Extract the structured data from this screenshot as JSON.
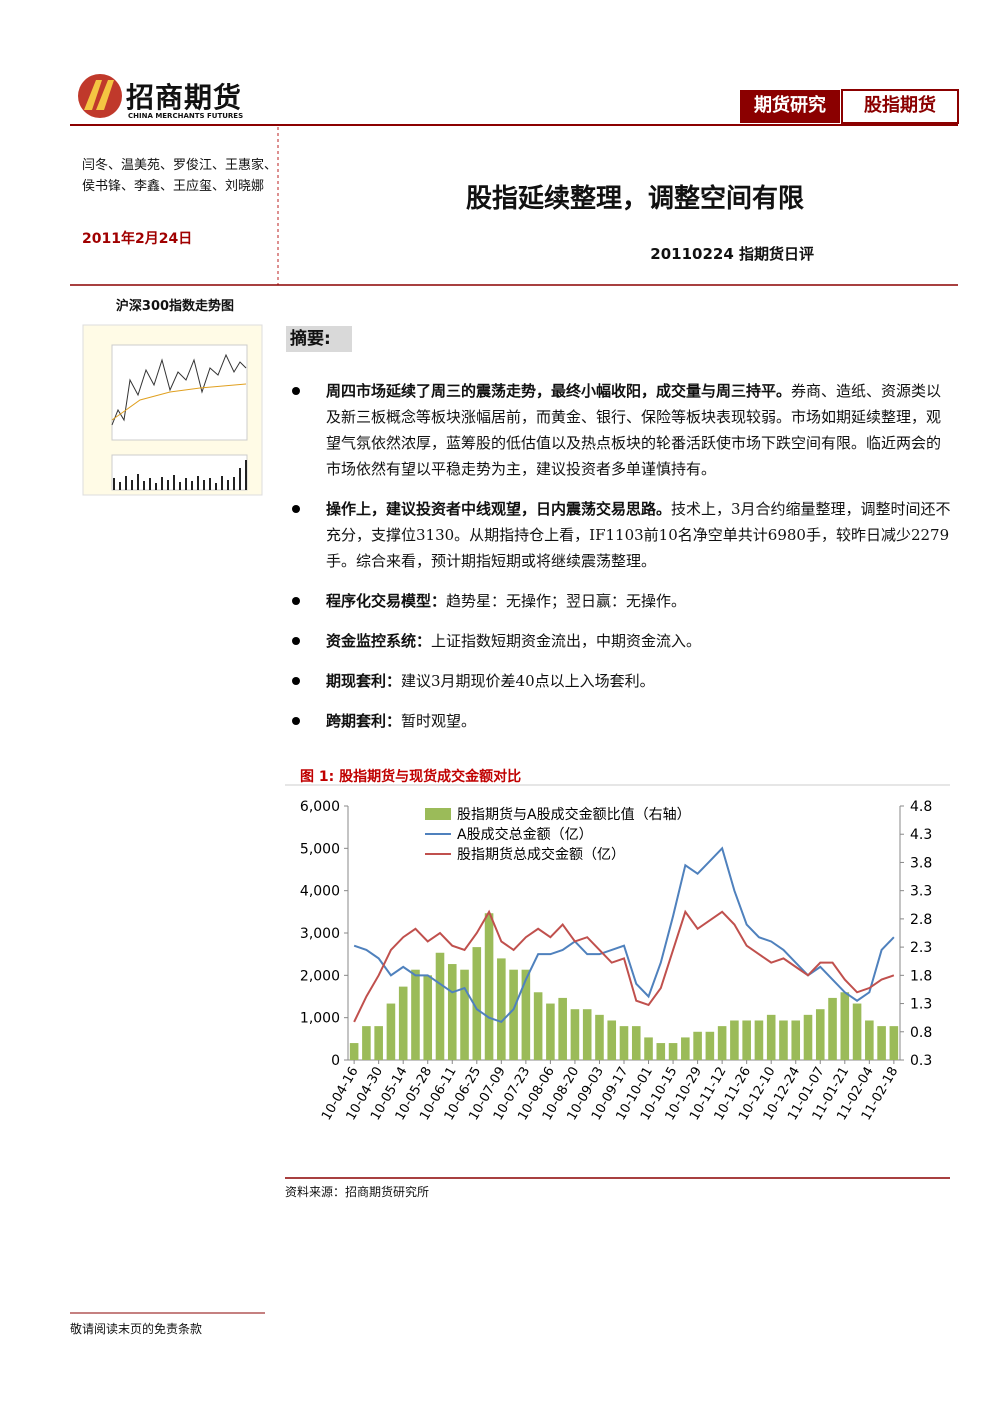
{
  "header": {
    "logo": "招商期货",
    "logo_en": "CHINA MERCHANTS FUTURES",
    "tags": [
      "期货研究",
      "股指期货"
    ]
  },
  "sidebar": {
    "authors": "闫冬、温美苑、罗俊江、王惠家、侯书锋、李鑫、王应玺、刘晓娜",
    "date": "2011年2月24日",
    "thumb_caption": "沪深300指数走势图"
  },
  "title": "股指延续整理，调整空间有限",
  "subtitle": "20110224 指期货日评",
  "summary_heading": "摘要:",
  "bullets": [
    {
      "bold": "周四市场延续了周三的震荡走势，最终小幅收阳，成交量与周三持平。",
      "text": "券商、造纸、资源类以及新三板概念等板块涨幅居前，而黄金、银行、保险等板块表现较弱。市场如期延续整理，观望气氛依然浓厚，蓝筹股的低估值以及热点板块的轮番活跃使市场下跌空间有限。临近两会的市场依然有望以平稳走势为主，建议投资者多单谨慎持有。"
    },
    {
      "bold": "操作上，建议投资者中线观望，日内震荡交易思路。",
      "text": "技术上，3月合约缩量整理，调整时间还不充分，支撑位3130。从期指持仓上看，IF1103前10名净空单共计6980手，较昨日减少2279手。综合来看，预计期指短期或将继续震荡整理。"
    },
    {
      "bold": "程序化交易模型：",
      "text": "趋势星：无操作；翌日赢：无操作。"
    },
    {
      "bold": "资金监控系统：",
      "text": "上证指数短期资金流出，中期资金流入。"
    },
    {
      "bold": "期现套利：",
      "text": "建议3月期现价差40点以上入场套利。"
    },
    {
      "bold": "跨期套利：",
      "text": "暂时观望。"
    }
  ],
  "figure_caption": "图 1: 股指期货与现货成交金额对比",
  "source": "资料来源：招商期货研究所",
  "footer": "敬请阅读末页的免责条款",
  "chart_data": {
    "type": "combo",
    "legend": "upper center",
    "x": [
      "10-04-16",
      null,
      "10-04-30",
      null,
      "10-05-14",
      null,
      "10-05-28",
      null,
      "10-06-11",
      null,
      "10-06-25",
      null,
      "10-07-09",
      null,
      "10-07-23",
      null,
      "10-08-06",
      null,
      "10-08-20",
      null,
      "10-09-03",
      null,
      "10-09-17",
      null,
      "10-10-01",
      null,
      "10-10-15",
      null,
      "10-10-29",
      null,
      "10-11-12",
      null,
      "10-11-26",
      null,
      "10-12-10",
      null,
      "10-12-24",
      null,
      "11-01-07",
      null,
      "11-01-21",
      null,
      "11-02-04",
      null,
      "11-02-18"
    ],
    "ylim": [
      0,
      6000
    ],
    "yticks": [
      0,
      {
        "value": 1000,
        "label": "1,000"
      },
      {
        "value": 2000,
        "label": "2,000"
      },
      {
        "value": 3000,
        "label": "3,000"
      },
      {
        "value": 4000,
        "label": "4,000"
      },
      {
        "value": 5000,
        "label": "5,000"
      },
      {
        "value": 6000,
        "label": "6,000"
      }
    ],
    "y2lim": [
      0.3,
      4.8
    ],
    "y2ticks": [
      0.3,
      0.8,
      1.3,
      1.8,
      2.3,
      2.8,
      3.3,
      3.8,
      4.3,
      4.8
    ],
    "series": [
      {
        "name": "股指期货与A股成交金额比值（右轴）",
        "kind": "bar",
        "axis": "y2",
        "color": "#9bbb59",
        "values": [
          0.6,
          0.9,
          0.9,
          1.3,
          1.6,
          1.9,
          1.8,
          2.2,
          2.0,
          1.9,
          2.3,
          2.9,
          2.1,
          1.9,
          1.9,
          1.5,
          1.3,
          1.4,
          1.2,
          1.2,
          1.1,
          1.0,
          0.9,
          0.9,
          0.7,
          0.6,
          0.6,
          0.7,
          0.8,
          0.8,
          0.9,
          1.0,
          1.0,
          1.0,
          1.1,
          1.0,
          1.0,
          1.1,
          1.2,
          1.4,
          1.5,
          1.3,
          1.0,
          0.9,
          0.9
        ]
      },
      {
        "name": "A股成交总金额（亿）",
        "kind": "line",
        "color": "#4f81bd",
        "values": [
          2700,
          2600,
          2400,
          2000,
          2200,
          2000,
          2000,
          1800,
          1600,
          1700,
          1200,
          1000,
          900,
          1200,
          1900,
          2500,
          2500,
          2600,
          2800,
          2500,
          2500,
          2600,
          2700,
          1800,
          1500,
          2300,
          3400,
          4600,
          4400,
          4700,
          5000,
          4000,
          3200,
          2900,
          2800,
          2600,
          2300,
          2000,
          2200,
          1900,
          1600,
          1400,
          1600,
          2600,
          2900
        ]
      },
      {
        "name": "股指期货总成交金额（亿）",
        "kind": "line",
        "color": "#c0504d",
        "values": [
          900,
          1500,
          2000,
          2600,
          2900,
          3100,
          2800,
          3000,
          2700,
          2600,
          3000,
          3500,
          2800,
          2600,
          2900,
          3100,
          2900,
          3200,
          2800,
          2900,
          2600,
          2300,
          2400,
          1400,
          1300,
          1700,
          2600,
          3500,
          3100,
          3300,
          3500,
          3200,
          2700,
          2500,
          2300,
          2400,
          2200,
          2000,
          2300,
          2300,
          1900,
          1600,
          1700,
          1900,
          2000
        ]
      }
    ]
  }
}
